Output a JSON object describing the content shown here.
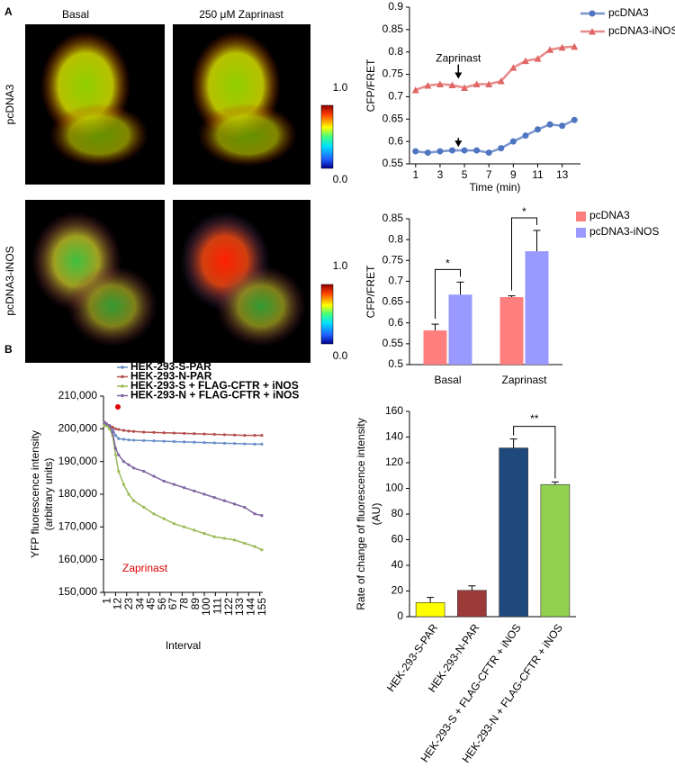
{
  "panels": {
    "a": "A",
    "b": "B"
  },
  "images": {
    "columns": [
      "Basal",
      "250 μM Zaprinast"
    ],
    "rows": [
      "pcDNA3",
      "pcDNA3-iNOS"
    ],
    "colorbar_ticks": [
      "1.0",
      "0.0"
    ]
  },
  "chart_data": [
    {
      "type": "line",
      "ylabel": "CFP/FRET",
      "xlabel": "Time (min)",
      "x": [
        1,
        2,
        3,
        4,
        5,
        6,
        7,
        8,
        9,
        10,
        11,
        12,
        13,
        14
      ],
      "xlim": [
        0.5,
        14.5
      ],
      "xticks": [
        1,
        3,
        5,
        7,
        9,
        11,
        13
      ],
      "ylim": [
        0.55,
        0.9
      ],
      "yticks": [
        0.55,
        0.6,
        0.65,
        0.7,
        0.75,
        0.8,
        0.85,
        0.9
      ],
      "annotation": "Zaprinast",
      "series": [
        {
          "name": "pcDNA3",
          "color": "#4f74c0",
          "marker": "circle",
          "values": [
            0.578,
            0.575,
            0.578,
            0.58,
            0.58,
            0.58,
            0.575,
            0.585,
            0.6,
            0.613,
            0.627,
            0.638,
            0.635,
            0.648
          ]
        },
        {
          "name": "pcDNA3-iNOS",
          "color": "#e06666",
          "marker": "triangle",
          "values": [
            0.715,
            0.725,
            0.728,
            0.726,
            0.72,
            0.728,
            0.728,
            0.735,
            0.765,
            0.78,
            0.785,
            0.805,
            0.81,
            0.812
          ]
        }
      ]
    },
    {
      "type": "bar",
      "ylabel": "CFP/FRET",
      "categories": [
        "Basal",
        "Zaprinast"
      ],
      "ylim": [
        0.5,
        0.85
      ],
      "yticks": [
        0.5,
        0.55,
        0.6,
        0.65,
        0.7,
        0.75,
        0.8,
        0.85
      ],
      "significance": [
        "*",
        "*"
      ],
      "series": [
        {
          "name": "pcDNA3",
          "color": "#ff7f7f",
          "values": [
            0.582,
            0.662
          ],
          "errors": [
            0.015,
            0.003
          ]
        },
        {
          "name": "pcDNA3-iNOS",
          "color": "#9999ff",
          "values": [
            0.668,
            0.772
          ],
          "errors": [
            0.03,
            0.05
          ]
        }
      ]
    },
    {
      "type": "line",
      "ylabel": [
        "YFP fluorescence intensity",
        "(arbitrary units)"
      ],
      "xlabel": "Interval",
      "annotation": "Zaprinast",
      "x": [
        1,
        3,
        6,
        9,
        12,
        15,
        20,
        25,
        30,
        40,
        50,
        60,
        70,
        80,
        90,
        100,
        110,
        120,
        130,
        140,
        150,
        157
      ],
      "xlim": [
        0,
        158
      ],
      "xticks": [
        1,
        12,
        23,
        34,
        45,
        56,
        67,
        78,
        89,
        100,
        111,
        122,
        133,
        144,
        155
      ],
      "ylim": [
        150000,
        210000
      ],
      "yticks": [
        {
          "value": 150000,
          "label": "150,000"
        },
        {
          "value": 160000,
          "label": "160,000"
        },
        {
          "value": 170000,
          "label": "170,000"
        },
        {
          "value": 180000,
          "label": "180,000"
        },
        {
          "value": 190000,
          "label": "190,000"
        },
        {
          "value": 200000,
          "label": "200,000"
        },
        {
          "value": 210000,
          "label": "210,000"
        }
      ],
      "series": [
        {
          "name": "HEK-293-S-PAR",
          "color": "#6a8fc8",
          "values": [
            201000,
            201000,
            200500,
            200000,
            198000,
            197000,
            196800,
            196600,
            196500,
            196400,
            196300,
            196200,
            196100,
            196000,
            195900,
            195800,
            195700,
            195600,
            195500,
            195400,
            195300,
            195300
          ]
        },
        {
          "name": "HEK-293-N-PAR",
          "color": "#b5504f",
          "values": [
            202000,
            201500,
            201000,
            200500,
            200000,
            199800,
            199500,
            199300,
            199200,
            199000,
            198900,
            198800,
            198700,
            198600,
            198500,
            198400,
            198300,
            198200,
            198100,
            198000,
            198000,
            198000
          ]
        },
        {
          "name": "HEK-293-S + FLAG-CFTR + iNOS",
          "color": "#9bbb59",
          "values": [
            201000,
            201000,
            200000,
            198000,
            192000,
            187000,
            183000,
            180000,
            178000,
            176000,
            174000,
            172500,
            171000,
            170000,
            169000,
            168000,
            167000,
            166500,
            166000,
            165000,
            164000,
            163000
          ]
        },
        {
          "name": "HEK-293-N + FLAG-CFTR + iNOS",
          "color": "#8064a2",
          "values": [
            202000,
            201500,
            201000,
            199000,
            194000,
            192000,
            190000,
            189000,
            188000,
            187000,
            185500,
            184000,
            183000,
            182000,
            181000,
            180000,
            179000,
            178000,
            177000,
            176000,
            174000,
            173500
          ]
        }
      ]
    },
    {
      "type": "bar",
      "ylabel": [
        "Rate of change of fluorescence intensity",
        "(AU)"
      ],
      "categories": [
        "HEK-293-S-PAR",
        "HEK-293-N-PAR",
        "HEK-293-S + FLAG-CFTR + iNOS",
        "HEK-293-N + FLAG-CFTR + iNOS"
      ],
      "values": [
        11,
        20.5,
        131.5,
        103
      ],
      "errors": [
        4,
        3.5,
        7,
        2
      ],
      "colors": [
        "#ffff00",
        "#9c3a3a",
        "#1f497d",
        "#92d050"
      ],
      "ylim": [
        0,
        160
      ],
      "yticks": [
        0,
        20,
        40,
        60,
        80,
        100,
        120,
        140,
        160
      ],
      "significance": "**"
    }
  ]
}
